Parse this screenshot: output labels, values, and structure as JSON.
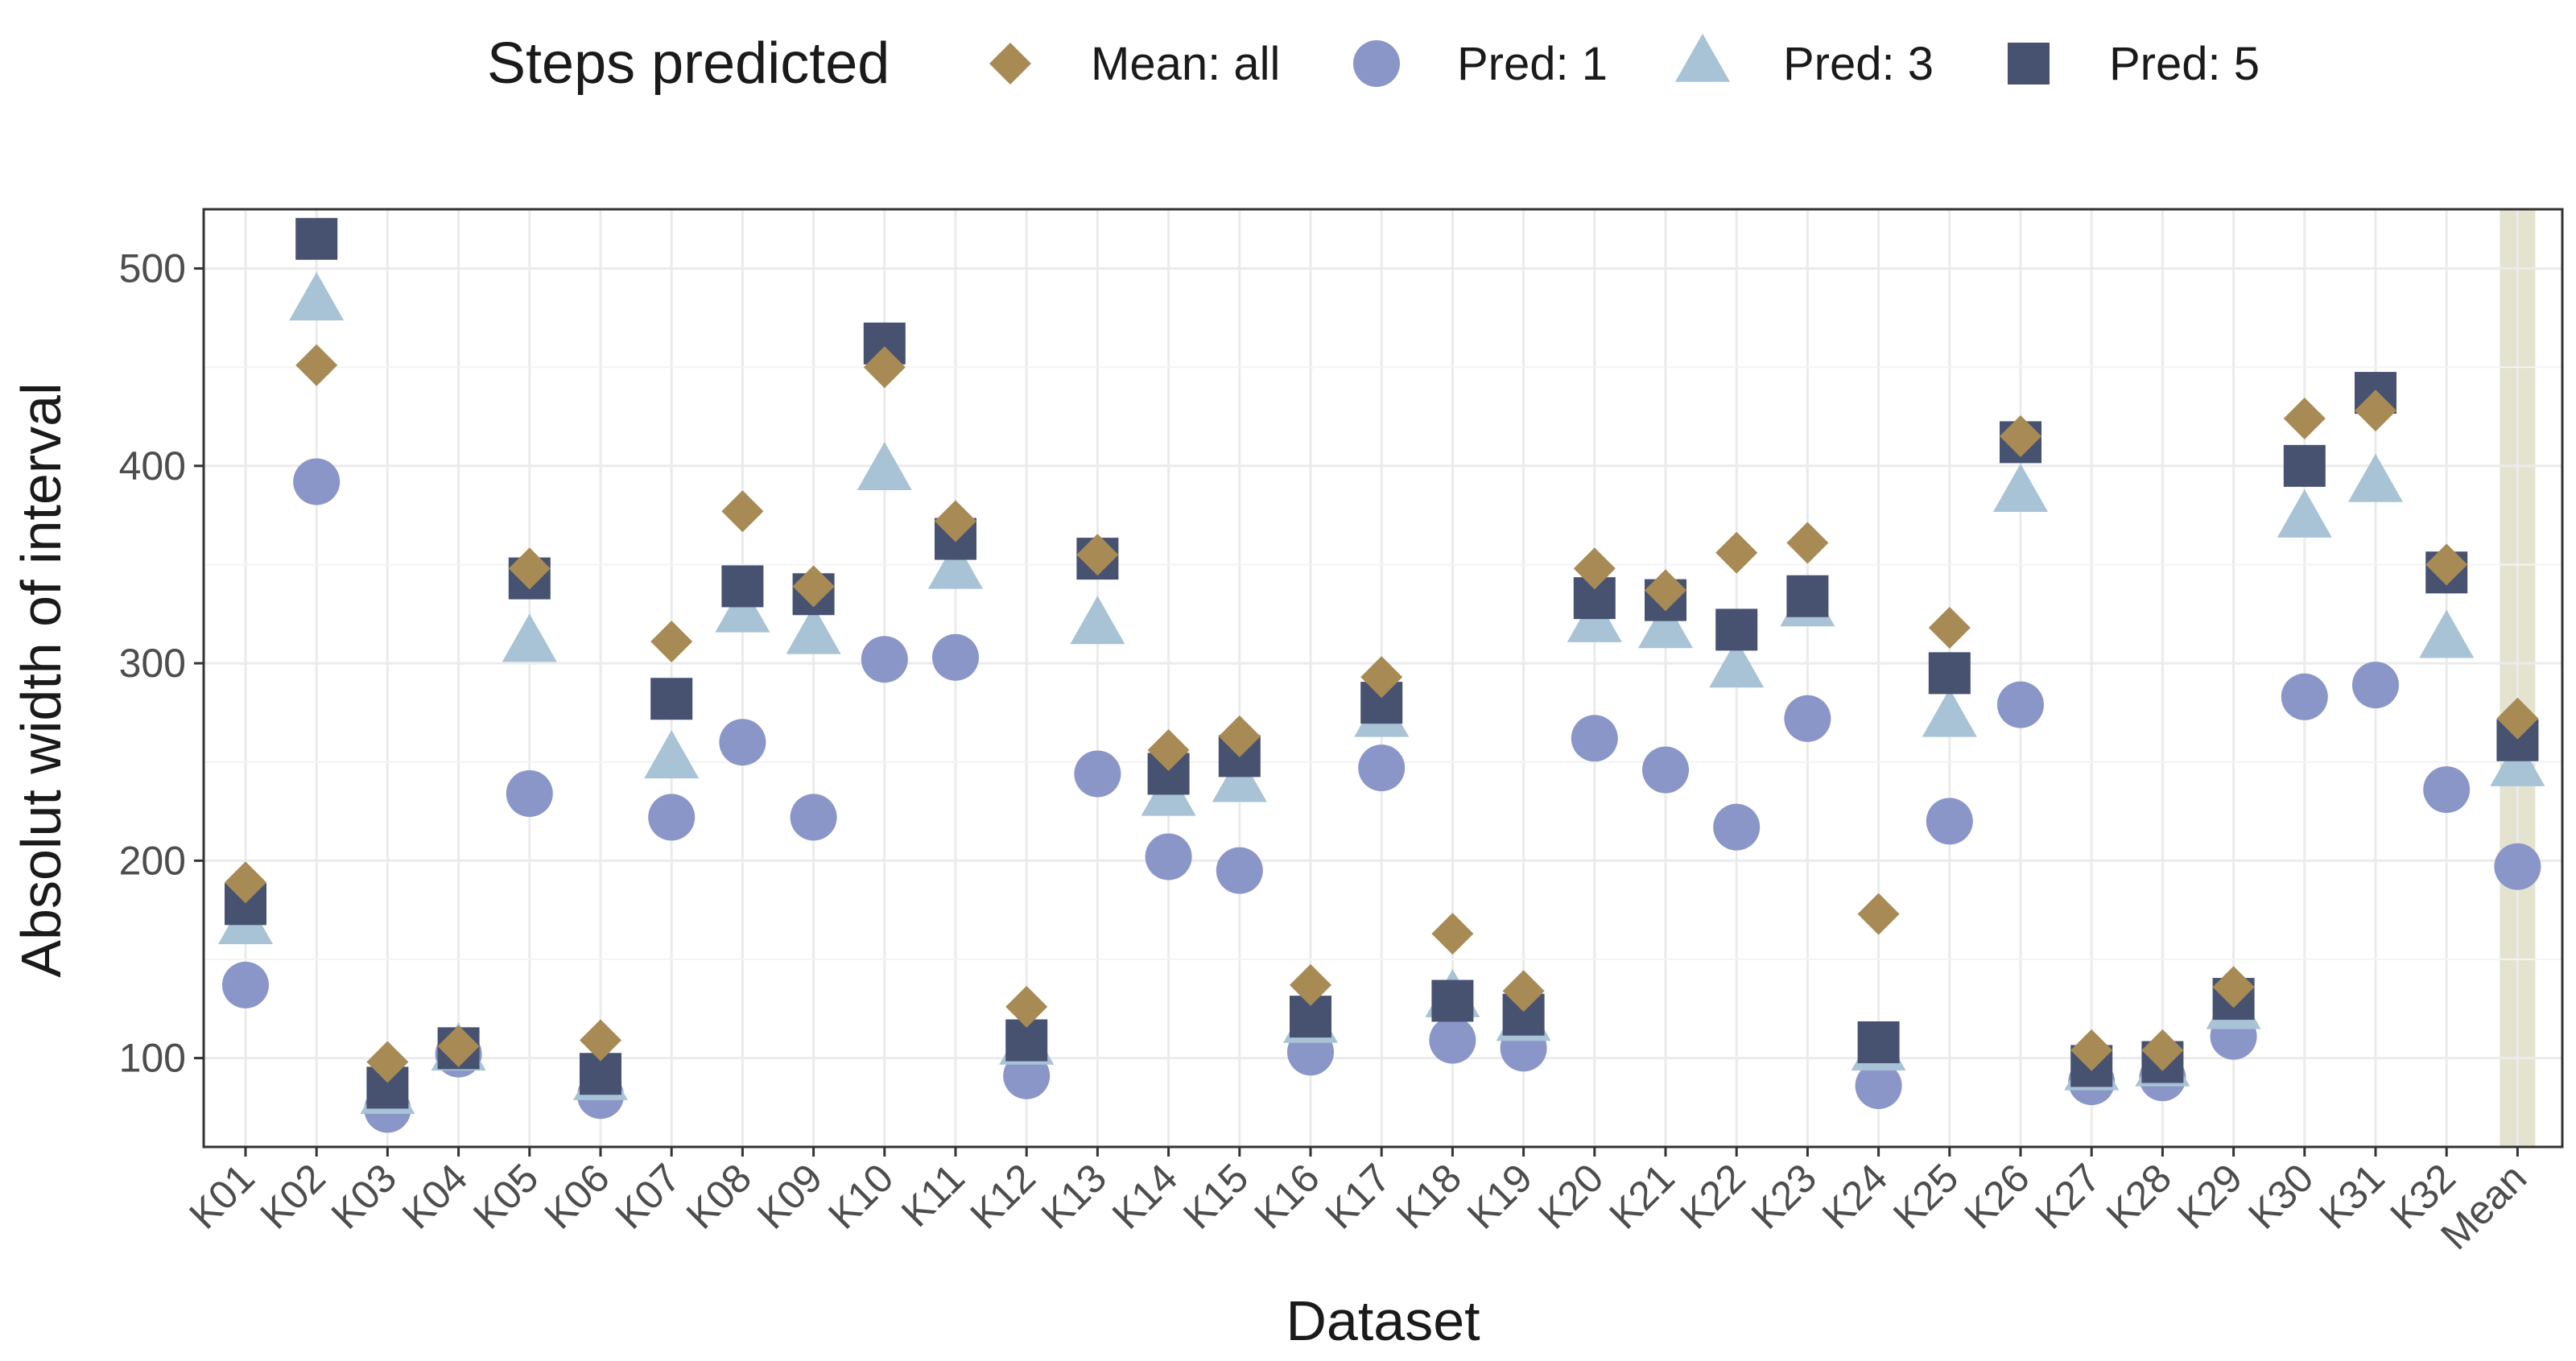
{
  "chart_data": {
    "type": "scatter",
    "title": "",
    "xlabel": "Dataset",
    "ylabel": "Absolut width of interval",
    "ylim": [
      55,
      530
    ],
    "yticks": [
      100,
      200,
      300,
      400,
      500
    ],
    "grid": true,
    "legend": {
      "title": "Steps predicted",
      "placement": "top"
    },
    "highlight_category": "Mean",
    "highlight_color": "#e3e3d0",
    "categories": [
      "K01",
      "K02",
      "K03",
      "K04",
      "K05",
      "K06",
      "K07",
      "K08",
      "K09",
      "K10",
      "K11",
      "K12",
      "K13",
      "K14",
      "K15",
      "K16",
      "K17",
      "K18",
      "K19",
      "K20",
      "K21",
      "K22",
      "K23",
      "K24",
      "K25",
      "K26",
      "K27",
      "K28",
      "K29",
      "K30",
      "K31",
      "K32",
      "Mean"
    ],
    "series": [
      {
        "name": "Mean: all",
        "shape": "diamond",
        "color": "#a88a55",
        "values": [
          189,
          451,
          98,
          106,
          348,
          109,
          311,
          377,
          339,
          450,
          372,
          126,
          355,
          256,
          263,
          137,
          293,
          163,
          134,
          348,
          337,
          356,
          361,
          173,
          318,
          415,
          104,
          104,
          136,
          424,
          428,
          350,
          272
        ]
      },
      {
        "name": "Pred: 1",
        "shape": "circle",
        "color": "#8a96c8",
        "values": [
          137,
          392,
          74,
          102,
          234,
          81,
          222,
          260,
          222,
          302,
          303,
          91,
          244,
          202,
          195,
          103,
          247,
          109,
          105,
          262,
          246,
          217,
          272,
          86,
          220,
          279,
          88,
          90,
          111,
          283,
          289,
          236,
          197
        ]
      },
      {
        "name": "Pred: 3",
        "shape": "triangle",
        "color": "#a7c3d5",
        "values": [
          167,
          483,
          81,
          103,
          310,
          88,
          251,
          325,
          314,
          397,
          347,
          106,
          319,
          232,
          239,
          117,
          272,
          130,
          118,
          320,
          317,
          297,
          328,
          103,
          272,
          386,
          93,
          95,
          124,
          373,
          391,
          312,
          247
        ]
      },
      {
        "name": "Pred: 5",
        "shape": "square",
        "color": "#475271",
        "values": [
          178,
          515,
          85,
          105,
          343,
          92,
          282,
          339,
          335,
          462,
          363,
          109,
          353,
          244,
          253,
          121,
          280,
          129,
          122,
          333,
          332,
          317,
          334,
          108,
          295,
          412,
          96,
          98,
          130,
          400,
          437,
          346,
          261
        ]
      }
    ]
  }
}
